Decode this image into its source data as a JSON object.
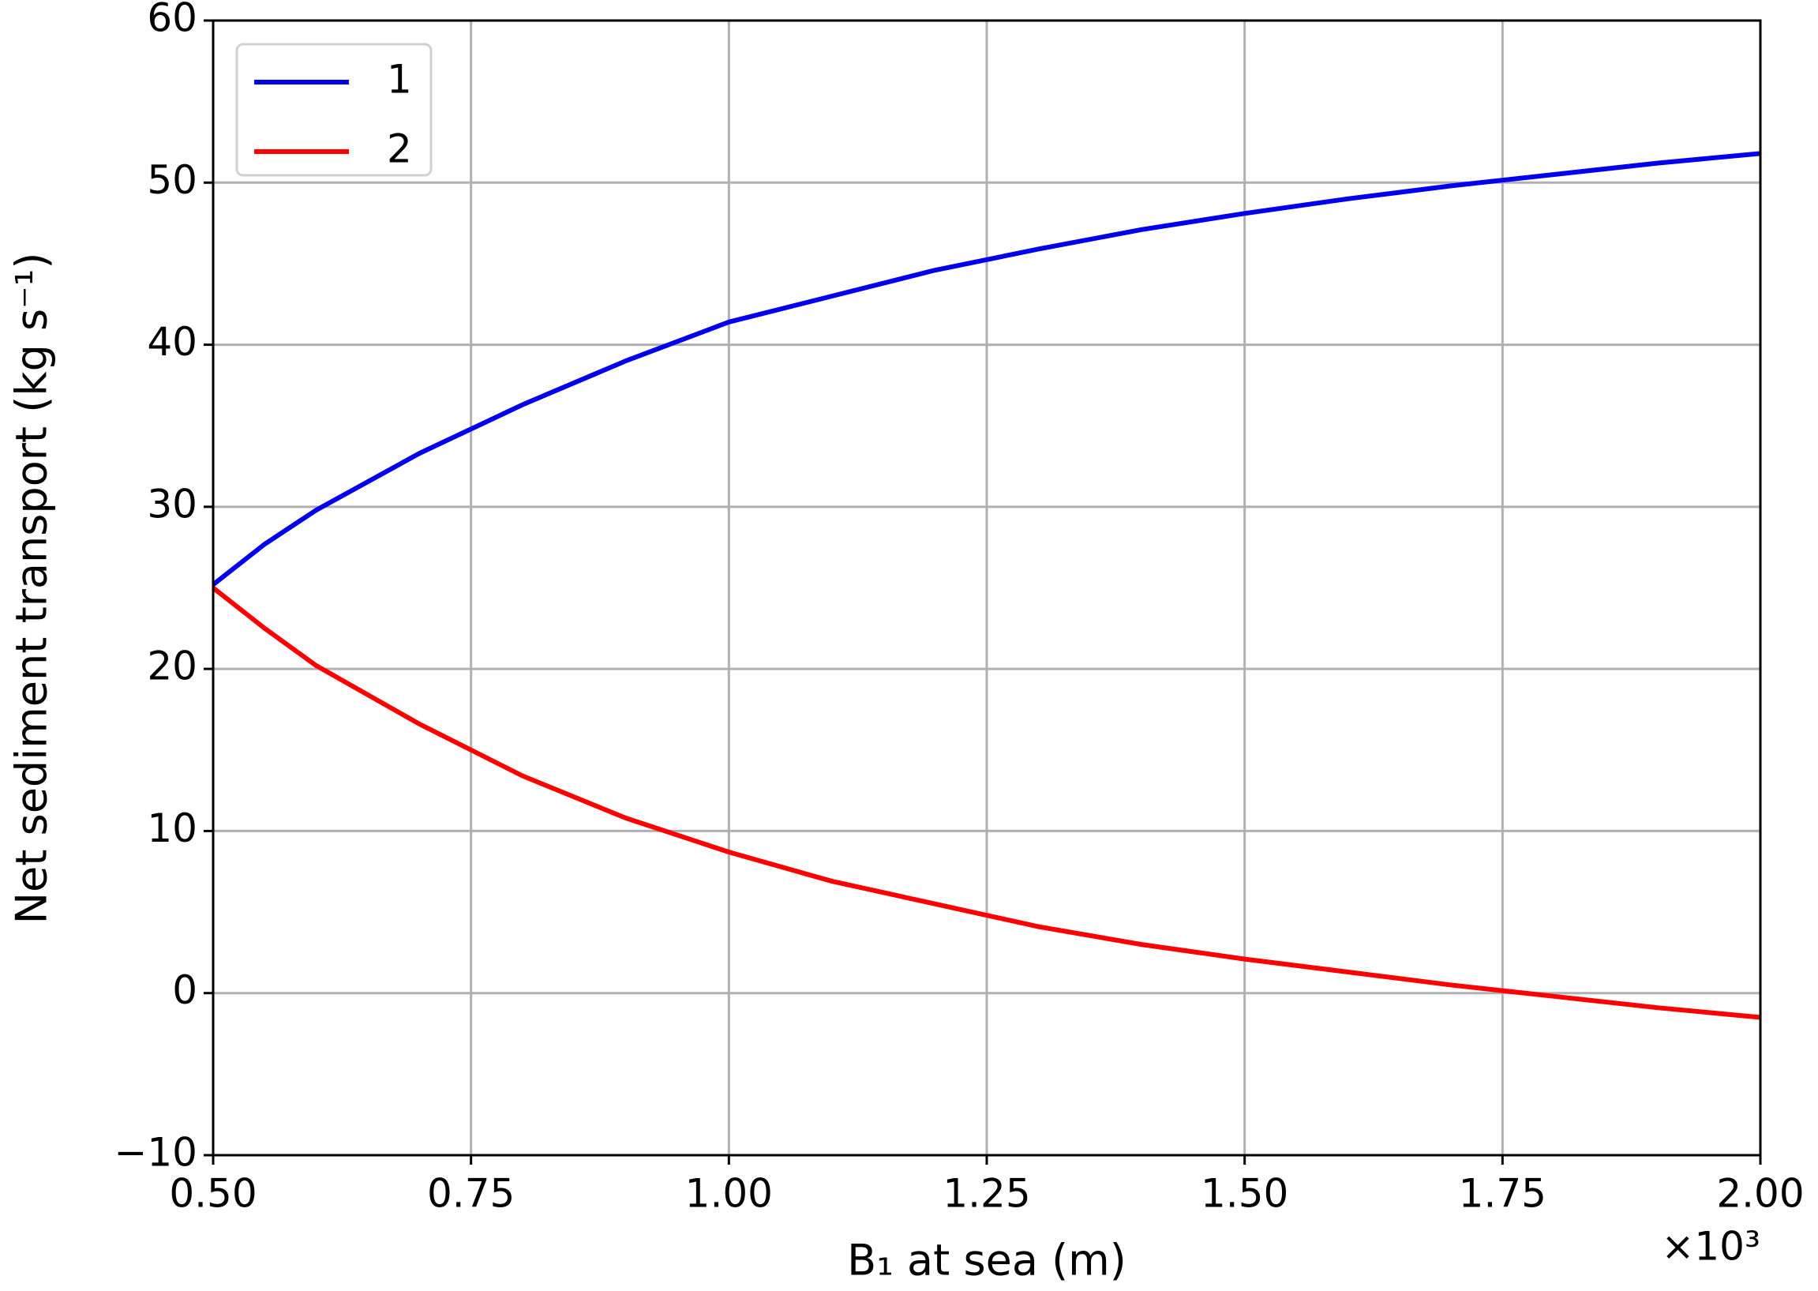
{
  "chart_data": {
    "type": "line",
    "x_label": "B₁ at sea (m)",
    "y_label": "Net sediment transport (kg s⁻¹)",
    "x_offset_label": "×10³",
    "x": [
      0.5,
      0.55,
      0.6,
      0.7,
      0.8,
      0.9,
      1.0,
      1.1,
      1.2,
      1.3,
      1.4,
      1.5,
      1.6,
      1.7,
      1.8,
      1.9,
      2.0
    ],
    "series": [
      {
        "name": "1",
        "color": "#0000ee",
        "values": [
          25.2,
          27.7,
          29.8,
          33.3,
          36.3,
          39.0,
          41.4,
          43.0,
          44.6,
          45.9,
          47.1,
          48.1,
          49.0,
          49.8,
          50.5,
          51.2,
          51.8
        ]
      },
      {
        "name": "2",
        "color": "#ff0000",
        "values": [
          25.0,
          22.5,
          20.2,
          16.6,
          13.4,
          10.8,
          8.7,
          6.9,
          5.5,
          4.1,
          3.0,
          2.1,
          1.3,
          0.5,
          -0.2,
          -0.9,
          -1.5
        ]
      }
    ],
    "xlim": [
      0.5,
      2.0
    ],
    "ylim": [
      -10,
      60
    ],
    "xticks": [
      {
        "value": 0.5,
        "label": "0.50"
      },
      {
        "value": 0.75,
        "label": "0.75"
      },
      {
        "value": 1.0,
        "label": "1.00"
      },
      {
        "value": 1.25,
        "label": "1.25"
      },
      {
        "value": 1.5,
        "label": "1.50"
      },
      {
        "value": 1.75,
        "label": "1.75"
      },
      {
        "value": 2.0,
        "label": "2.00"
      }
    ],
    "yticks": [
      {
        "value": -10,
        "label": "−10"
      },
      0,
      10,
      20,
      30,
      40,
      50,
      60
    ],
    "grid": true,
    "legend": "upper-left"
  }
}
